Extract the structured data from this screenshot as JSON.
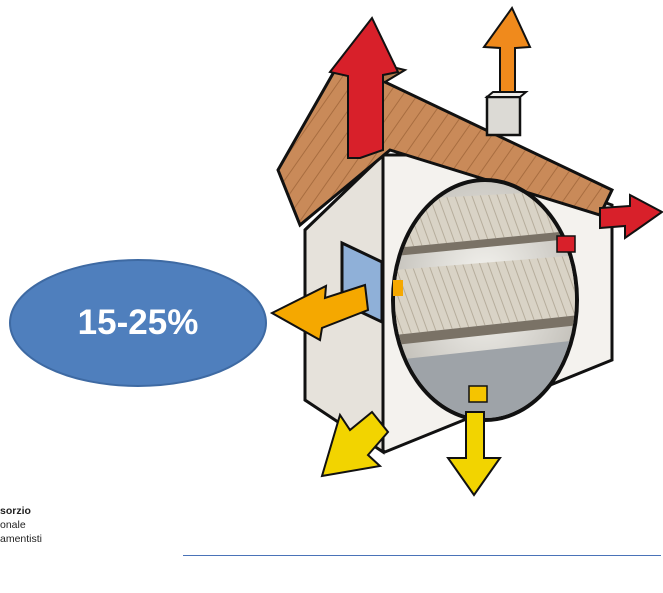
{
  "badge": {
    "label": "15-25%",
    "color": "#4f7fbd"
  },
  "logo": {
    "lines": [
      "sorzio",
      "onale",
      "amentisti"
    ]
  },
  "colors": {
    "arrow_red": "#d8202a",
    "arrow_orange": "#f08a1c",
    "arrow_amber": "#f5a800",
    "arrow_yellow": "#f2d400",
    "roof": "#c98a59",
    "wall": "#f4f2ee",
    "window": "#8fb0d8",
    "rule": "#4a73b8"
  },
  "icons": [
    "house-cutaway-icon",
    "heat-loss-arrow-icon"
  ]
}
